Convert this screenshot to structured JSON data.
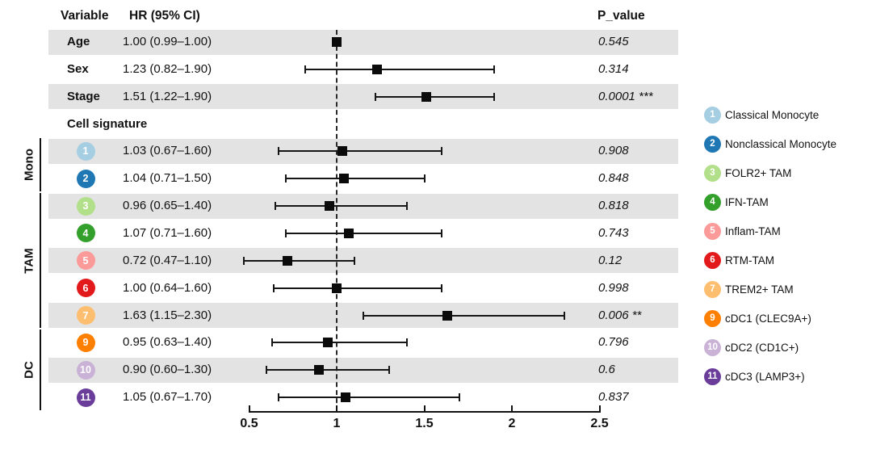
{
  "header": {
    "variable": "Variable",
    "hr": "HR (95% CI)",
    "p": "P_value"
  },
  "chart_data": {
    "type": "forest",
    "x_axis": {
      "ticks": [
        0.5,
        1,
        1.5,
        2,
        2.5
      ],
      "tick_labels": [
        "0.5",
        "1",
        "1.5",
        "2",
        "2.5"
      ],
      "xlim": [
        0.5,
        2.5
      ],
      "reference_line": 1
    },
    "rows": [
      {
        "kind": "variable",
        "label": "Age",
        "hr_text": "1.00 (0.99–1.00)",
        "hr": 1.0,
        "ci_low": 0.99,
        "ci_high": 1.0,
        "p_value": "0.545",
        "shaded": true
      },
      {
        "kind": "variable",
        "label": "Sex",
        "hr_text": "1.23 (0.82–1.90)",
        "hr": 1.23,
        "ci_low": 0.82,
        "ci_high": 1.9,
        "p_value": "0.314",
        "shaded": false
      },
      {
        "kind": "variable",
        "label": "Stage",
        "hr_text": "1.51 (1.22–1.90)",
        "hr": 1.51,
        "ci_low": 1.22,
        "ci_high": 1.9,
        "p_value": "0.0001 ***",
        "shaded": true
      },
      {
        "kind": "section",
        "label": "Cell signature",
        "shaded": false
      },
      {
        "kind": "cell",
        "num": "1",
        "color": "#a6cee3",
        "hr_text": "1.03 (0.67–1.60)",
        "hr": 1.03,
        "ci_low": 0.67,
        "ci_high": 1.6,
        "p_value": "0.908",
        "shaded": true
      },
      {
        "kind": "cell",
        "num": "2",
        "color": "#1f78b4",
        "hr_text": "1.04 (0.71–1.50)",
        "hr": 1.04,
        "ci_low": 0.71,
        "ci_high": 1.5,
        "p_value": "0.848",
        "shaded": false
      },
      {
        "kind": "cell",
        "num": "3",
        "color": "#b2df8a",
        "hr_text": "0.96 (0.65–1.40)",
        "hr": 0.96,
        "ci_low": 0.65,
        "ci_high": 1.4,
        "p_value": "0.818",
        "shaded": true
      },
      {
        "kind": "cell",
        "num": "4",
        "color": "#33a02c",
        "hr_text": "1.07 (0.71–1.60)",
        "hr": 1.07,
        "ci_low": 0.71,
        "ci_high": 1.6,
        "p_value": "0.743",
        "shaded": false
      },
      {
        "kind": "cell",
        "num": "5",
        "color": "#fb9a99",
        "hr_text": "0.72 (0.47–1.10)",
        "hr": 0.72,
        "ci_low": 0.47,
        "ci_high": 1.1,
        "p_value": "0.12",
        "shaded": true
      },
      {
        "kind": "cell",
        "num": "6",
        "color": "#e31a1c",
        "hr_text": "1.00 (0.64–1.60)",
        "hr": 1.0,
        "ci_low": 0.64,
        "ci_high": 1.6,
        "p_value": "0.998",
        "shaded": false
      },
      {
        "kind": "cell",
        "num": "7",
        "color": "#fdbf6f",
        "hr_text": "1.63 (1.15–2.30)",
        "hr": 1.63,
        "ci_low": 1.15,
        "ci_high": 2.3,
        "p_value": "0.006 **",
        "shaded": true
      },
      {
        "kind": "cell",
        "num": "9",
        "color": "#ff7f00",
        "hr_text": "0.95 (0.63–1.40)",
        "hr": 0.95,
        "ci_low": 0.63,
        "ci_high": 1.4,
        "p_value": "0.796",
        "shaded": false
      },
      {
        "kind": "cell",
        "num": "10",
        "color": "#cab2d6",
        "hr_text": "0.90 (0.60–1.30)",
        "hr": 0.9,
        "ci_low": 0.6,
        "ci_high": 1.3,
        "p_value": "0.6",
        "shaded": true
      },
      {
        "kind": "cell",
        "num": "11",
        "color": "#6a3d9a",
        "hr_text": "1.05 (0.67–1.70)",
        "hr": 1.05,
        "ci_low": 0.67,
        "ci_high": 1.7,
        "p_value": "0.837",
        "shaded": false
      }
    ],
    "groups": [
      {
        "label": "Mono",
        "from_row": 4,
        "to_row": 5
      },
      {
        "label": "TAM",
        "from_row": 6,
        "to_row": 10
      },
      {
        "label": "DC",
        "from_row": 11,
        "to_row": 13
      }
    ]
  },
  "legend": {
    "items": [
      {
        "num": "1",
        "color": "#a6cee3",
        "label": "Classical Monocyte"
      },
      {
        "num": "2",
        "color": "#1f78b4",
        "label": "Nonclassical Monocyte"
      },
      {
        "num": "3",
        "color": "#b2df8a",
        "label": "FOLR2+ TAM"
      },
      {
        "num": "4",
        "color": "#33a02c",
        "label": "IFN-TAM"
      },
      {
        "num": "5",
        "color": "#fb9a99",
        "label": "Inflam-TAM"
      },
      {
        "num": "6",
        "color": "#e31a1c",
        "label": "RTM-TAM"
      },
      {
        "num": "7",
        "color": "#fdbf6f",
        "label": "TREM2+ TAM"
      },
      {
        "num": "9",
        "color": "#ff7f00",
        "label": "cDC1 (CLEC9A+)"
      },
      {
        "num": "10",
        "color": "#cab2d6",
        "label": "cDC2 (CD1C+)"
      },
      {
        "num": "11",
        "color": "#6a3d9a",
        "label": "cDC3 (LAMP3+)"
      }
    ]
  },
  "colors": {
    "band": "#e3e3e3",
    "marker": "#0b0b0b",
    "line": "#161616",
    "axis": "#111111"
  }
}
